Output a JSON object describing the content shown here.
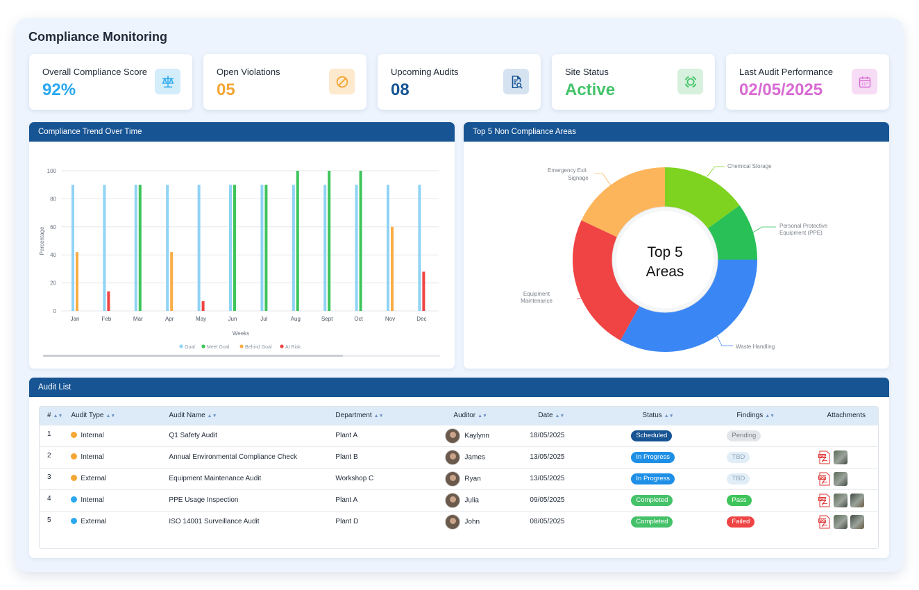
{
  "page": {
    "title": "Compliance Monitoring"
  },
  "kpis": [
    {
      "label": "Overall Compliance Score",
      "value": "92%",
      "color": "#2aa8ef",
      "icon": "scale-icon",
      "icon_bg": "#d3edfb"
    },
    {
      "label": "Open Violations",
      "value": "05",
      "color": "#f5a634",
      "icon": "prohibited-icon",
      "icon_bg": "#fde9cd"
    },
    {
      "label": "Upcoming Audits",
      "value": "08",
      "color": "#175493",
      "icon": "document-search-icon",
      "icon_bg": "#d5e3f1"
    },
    {
      "label": "Site Status",
      "value": "Active",
      "color": "#44c46a",
      "icon": "status-ring-icon",
      "icon_bg": "#d7f1de"
    },
    {
      "label": "Last Audit Performance",
      "value": "02/05/2025",
      "color": "#d86ad3",
      "icon": "calendar-icon",
      "icon_bg": "#f6dcf4"
    }
  ],
  "trend": {
    "title": "Compliance Trend Over Time",
    "chart_data": {
      "type": "bar",
      "categories": [
        "Jan",
        "Feb",
        "Mar",
        "Apr",
        "May",
        "Jun",
        "Jul",
        "Aug",
        "Sept",
        "Oct",
        "Nov",
        "Dec"
      ],
      "series": [
        {
          "name": "Goal",
          "color": "#8fd3f5",
          "values": [
            90,
            90,
            90,
            90,
            90,
            90,
            90,
            90,
            90,
            90,
            90,
            90
          ]
        },
        {
          "name": "Meet Goal",
          "color": "#3ec45a",
          "values": [
            null,
            null,
            90,
            null,
            null,
            90,
            90,
            100,
            100,
            100,
            null,
            null
          ]
        },
        {
          "name": "Behind Goal",
          "color": "#f9ad44",
          "values": [
            42,
            null,
            null,
            42,
            null,
            null,
            null,
            null,
            null,
            null,
            60,
            null
          ]
        },
        {
          "name": "At Risk",
          "color": "#ef4444",
          "values": [
            null,
            14,
            null,
            null,
            7,
            null,
            null,
            null,
            null,
            null,
            null,
            28
          ]
        }
      ],
      "yticks": [
        0,
        20,
        40,
        60,
        80,
        100
      ],
      "ylim": [
        0,
        100
      ],
      "xlabel": "Weeks",
      "ylabel": "Percentage",
      "grid": true,
      "legend_position": "bottom"
    }
  },
  "areas": {
    "title": "Top 5 Non Compliance Areas",
    "center_line1": "Top 5",
    "center_line2": "Areas",
    "chart_data": {
      "type": "pie",
      "slices": [
        {
          "label": "Chemical Storage",
          "value": 15,
          "color": "#7ed321"
        },
        {
          "label": "Personal Protective Equipment (PPE)",
          "value": 10,
          "color": "#29c157"
        },
        {
          "label": "Waste Handling",
          "value": 33,
          "color": "#3a86f5"
        },
        {
          "label": "Equipment Maintenance",
          "value": 24,
          "color": "#f04444"
        },
        {
          "label": "Emergency Exit Signage",
          "value": 18,
          "color": "#fdb55c"
        }
      ]
    },
    "labels": {
      "chemical": "Chemical Storage",
      "ppe1": "Personal Protective",
      "ppe2": "Equipment (PPE)",
      "waste": "Waste Handling",
      "equip1": "Equipment",
      "equip2": "Maintenance",
      "exit1": "Emergency Exit",
      "exit2": "Signage"
    }
  },
  "audits": {
    "title": "Audit List",
    "columns": [
      "#",
      "Audit Type",
      "Audit Name",
      "Department",
      "Auditor",
      "Date",
      "Status",
      "Findings",
      "Attachments"
    ],
    "rows": [
      {
        "n": "1",
        "type": "Internal",
        "type_color": "#f5a634",
        "name": "Q1 Safety Audit",
        "dept": "Plant A",
        "auditor": "Kaylynn",
        "date": "18/05/2025",
        "status": "Scheduled",
        "status_bg": "#175493",
        "status_fg": "#ffffff",
        "finding": "Pending",
        "finding_bg": "#e3e5e8",
        "finding_fg": "#7b8189"
      },
      {
        "n": "2",
        "type": "Internal",
        "type_color": "#f5a634",
        "name": "Annual Environmental Compliance Check",
        "dept": "Plant B",
        "auditor": "James",
        "date": "13/05/2025",
        "status": "In Progress",
        "status_bg": "#1e8fe6",
        "status_fg": "#ffffff",
        "finding": "TBD",
        "finding_bg": "#e1eef8",
        "finding_fg": "#93a6b8"
      },
      {
        "n": "3",
        "type": "External",
        "type_color": "#f5a634",
        "name": "Equipment Maintenance Audit",
        "dept": "Workshop C",
        "auditor": "Ryan",
        "date": "13/05/2025",
        "status": "In Progress",
        "status_bg": "#1e8fe6",
        "status_fg": "#ffffff",
        "finding": "TBD",
        "finding_bg": "#e1eef8",
        "finding_fg": "#93a6b8"
      },
      {
        "n": "4",
        "type": "Internal",
        "type_color": "#2aa8ef",
        "name": "PPE Usage Inspection",
        "dept": "Plant A",
        "auditor": "Julia",
        "date": "09/05/2025",
        "status": "Completed",
        "status_bg": "#45c16a",
        "status_fg": "#ffffff",
        "finding": "Pass",
        "finding_bg": "#3ec45a",
        "finding_fg": "#ffffff"
      },
      {
        "n": "5",
        "type": "External",
        "type_color": "#2aa8ef",
        "name": "ISO 14001 Surveillance Audit",
        "dept": "Plant D",
        "auditor": "John",
        "date": "08/05/2025",
        "status": "Completed",
        "status_bg": "#45c16a",
        "status_fg": "#ffffff",
        "finding": "Failed",
        "finding_bg": "#ef4444",
        "finding_fg": "#ffffff"
      }
    ]
  }
}
